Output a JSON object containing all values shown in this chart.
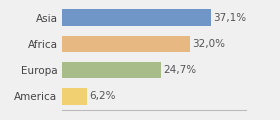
{
  "categories": [
    "Asia",
    "Africa",
    "Europa",
    "America"
  ],
  "values": [
    37.1,
    32.0,
    24.7,
    6.2
  ],
  "labels": [
    "37,1%",
    "32,0%",
    "24,7%",
    "6,2%"
  ],
  "bar_colors": [
    "#7096c8",
    "#e8b882",
    "#a8bc8a",
    "#f0d070"
  ],
  "background_color": "#f0f0f0",
  "xlim": [
    0,
    46
  ],
  "label_fontsize": 7.5,
  "tick_fontsize": 7.5,
  "bar_height": 0.65
}
